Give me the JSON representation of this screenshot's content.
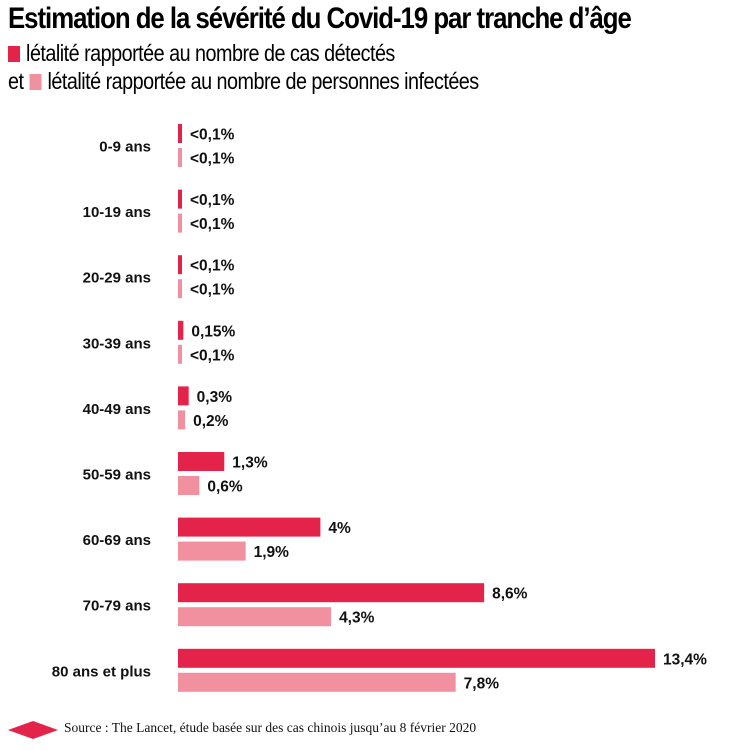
{
  "colors": {
    "cases": "#e4234b",
    "infected": "#f1909f"
  },
  "title": "Estimation de la sévérité du Covid-19 par tranche d’âge",
  "legend": {
    "prefix_second": "et",
    "cases_label": "létalité rapportée au nombre de cas détectés",
    "infected_label": "létalité rapportée au nombre de personnes infectées"
  },
  "chart_data": {
    "type": "bar",
    "orientation": "horizontal",
    "categories": [
      "0-9 ans",
      "10-19 ans",
      "20-29 ans",
      "30-39 ans",
      "40-49 ans",
      "50-59 ans",
      "60-69 ans",
      "70-79 ans",
      "80 ans et plus"
    ],
    "series": [
      {
        "name": "létalité rapportée au nombre de cas détectés",
        "values": [
          0.05,
          0.05,
          0.05,
          0.15,
          0.3,
          1.3,
          4,
          8.6,
          13.4
        ],
        "labels": [
          "<0,1%",
          "<0,1%",
          "<0,1%",
          "0,15%",
          "0,3%",
          "1,3%",
          "4%",
          "8,6%",
          "13,4%"
        ]
      },
      {
        "name": "létalité rapportée au nombre de personnes infectées",
        "values": [
          0.05,
          0.05,
          0.05,
          0.05,
          0.2,
          0.6,
          1.9,
          4.3,
          7.8
        ],
        "labels": [
          "<0,1%",
          "<0,1%",
          "<0,1%",
          "<0,1%",
          "0,2%",
          "0,6%",
          "1,9%",
          "4,3%",
          "7,8%"
        ]
      }
    ],
    "xlim": [
      0,
      13.4
    ],
    "grid": false,
    "legend_position": "top-left"
  },
  "footer": {
    "source": "Source : The Lancet, étude basée sur des cas chinois jusqu’au 8 février 2020"
  }
}
